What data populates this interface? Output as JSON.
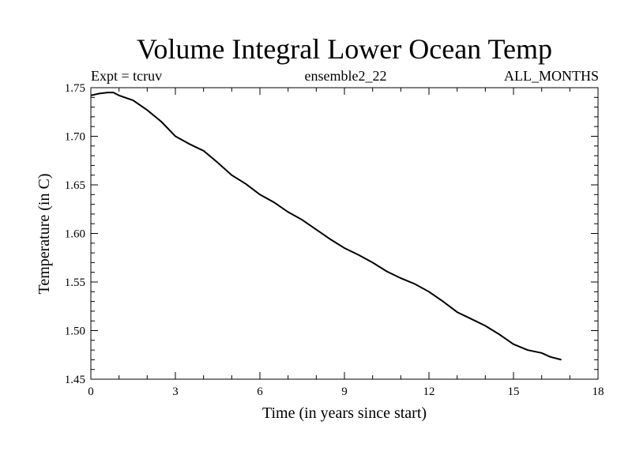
{
  "chart_data": {
    "type": "line",
    "title": "Volume Integral Lower Ocean Temp",
    "subtitle_left": "Expt = tcruv",
    "subtitle_center": "ensemble2_22",
    "subtitle_right": "ALL_MONTHS",
    "xlabel": "Time (in years since start)",
    "ylabel": "Temperature (in C)",
    "xlim": [
      0,
      18
    ],
    "ylim": [
      1.45,
      1.75
    ],
    "x_ticks": [
      0,
      3,
      6,
      9,
      12,
      15,
      18
    ],
    "x_tick_labels": [
      "0",
      "3",
      "6",
      "9",
      "12",
      "15",
      "18"
    ],
    "y_ticks": [
      1.45,
      1.5,
      1.55,
      1.6,
      1.65,
      1.7,
      1.75
    ],
    "y_tick_labels": [
      "1.45",
      "1.50",
      "1.55",
      "1.60",
      "1.65",
      "1.70",
      "1.75"
    ],
    "grid": false,
    "series": [
      {
        "color": "#000000",
        "x": [
          0,
          0.3,
          0.6,
          0.8,
          1.0,
          1.5,
          2.0,
          2.5,
          3.0,
          3.5,
          4.0,
          4.5,
          5.0,
          5.5,
          6.0,
          6.5,
          7.0,
          7.5,
          8.0,
          8.5,
          9.0,
          9.5,
          10.0,
          10.5,
          11.0,
          11.5,
          12.0,
          12.5,
          13.0,
          13.5,
          14.0,
          14.5,
          15.0,
          15.5,
          16.0,
          16.3,
          16.7
        ],
        "y": [
          1.742,
          1.744,
          1.745,
          1.745,
          1.742,
          1.737,
          1.727,
          1.715,
          1.7,
          1.692,
          1.685,
          1.673,
          1.66,
          1.651,
          1.64,
          1.632,
          1.622,
          1.614,
          1.604,
          1.594,
          1.585,
          1.578,
          1.57,
          1.561,
          1.554,
          1.548,
          1.54,
          1.53,
          1.519,
          1.512,
          1.505,
          1.496,
          1.486,
          1.48,
          1.477,
          1.473,
          1.47
        ]
      }
    ]
  }
}
